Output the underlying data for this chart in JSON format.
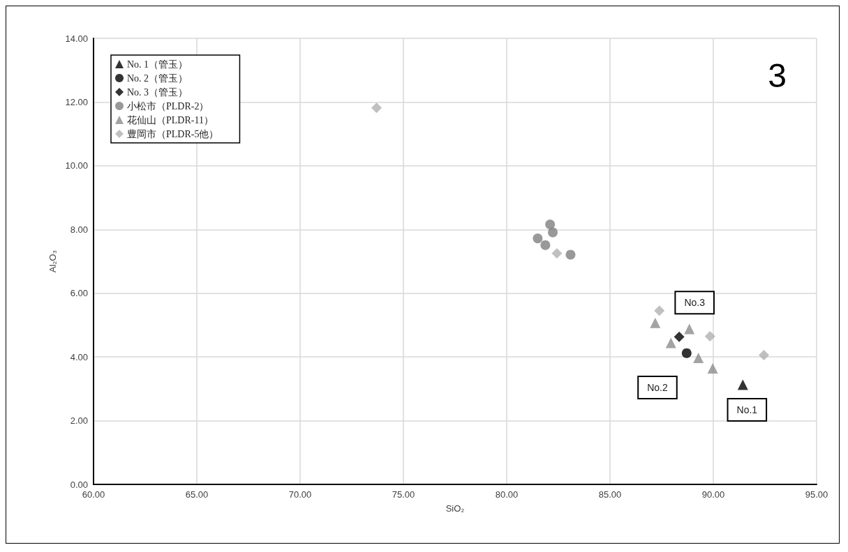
{
  "chart_data": {
    "type": "scatter",
    "xlabel": "SiO₂",
    "ylabel": "Al₂O₃",
    "xlim": [
      60,
      95
    ],
    "ylim": [
      0,
      14
    ],
    "xticks": [
      {
        "value": 60,
        "label": "60.00"
      },
      {
        "value": 65,
        "label": "65.00"
      },
      {
        "value": 70,
        "label": "70.00"
      },
      {
        "value": 75,
        "label": "75.00"
      },
      {
        "value": 80,
        "label": "80.00"
      },
      {
        "value": 85,
        "label": "85.00"
      },
      {
        "value": 90,
        "label": "90.00"
      },
      {
        "value": 95,
        "label": "95.00"
      }
    ],
    "yticks": [
      {
        "value": 0,
        "label": "0.00"
      },
      {
        "value": 2,
        "label": "2.00"
      },
      {
        "value": 4,
        "label": "4.00"
      },
      {
        "value": 6,
        "label": "6.00"
      },
      {
        "value": 8,
        "label": "8.00"
      },
      {
        "value": 10,
        "label": "10.00"
      },
      {
        "value": 12,
        "label": "12.00"
      },
      {
        "value": 14,
        "label": "14.00"
      }
    ],
    "grid": true,
    "legend": "top left",
    "series": [
      {
        "name": "No. 1（管玉）",
        "color": "#000000",
        "marker": "triangle",
        "x": [
          91.43
        ],
        "values": [
          3.13
        ]
      },
      {
        "name": "No. 2（管玉）",
        "color": "#000000",
        "marker": "circle",
        "x": [
          88.71
        ],
        "values": [
          4.12
        ]
      },
      {
        "name": "No. 3（管玉）",
        "color": "#000000",
        "marker": "diamond",
        "x": [
          88.35
        ],
        "values": [
          4.63
        ]
      },
      {
        "name": "小松市（PLDR-2）",
        "color": "#808080",
        "marker": "circle",
        "x": [
          82.1,
          82.23,
          81.5,
          81.87,
          83.09
        ],
        "values": [
          8.16,
          7.91,
          7.72,
          7.51,
          7.21
        ]
      },
      {
        "name": "花仙山（PLDR-11）",
        "color": "#8c8c8c",
        "marker": "triangle",
        "x": [
          87.19,
          88.84,
          87.95,
          89.28,
          89.97
        ],
        "values": [
          5.07,
          4.88,
          4.44,
          3.97,
          3.64
        ]
      },
      {
        "name": "豊岡市（PLDR-5他）",
        "color": "#b0b0b0",
        "marker": "diamond",
        "x": [
          73.7,
          82.43,
          87.39,
          89.84,
          92.45
        ],
        "values": [
          11.82,
          7.25,
          5.45,
          4.65,
          4.06
        ]
      }
    ],
    "annotations": [
      {
        "text": "No.3",
        "x": 88.35,
        "y": 4.63
      },
      {
        "text": "No.1",
        "x": 91.43,
        "y": 3.13
      },
      "No.2",
      "3"
    ]
  }
}
